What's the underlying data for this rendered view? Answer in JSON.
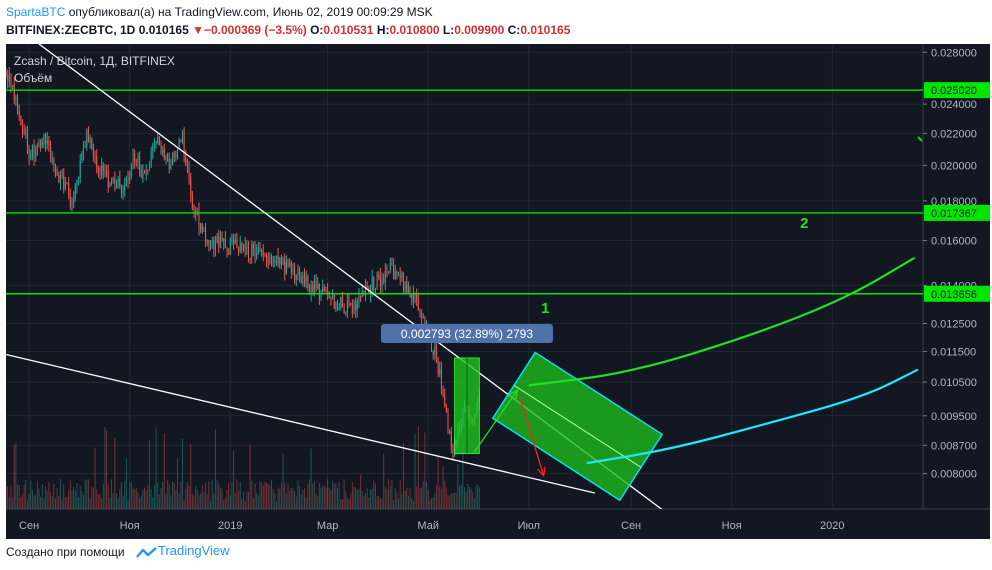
{
  "header": {
    "author": "SpartaBTC",
    "published_text": "опубликовал(а) на TradingView.com, Июнь 02, 2019 00:09:29 MSK",
    "symbol_interval": "BITFINEX:ZECBTC, 1D",
    "last_price": "0.010165",
    "change_arrow": "▼",
    "change": "−0.000369 (−3.5%)",
    "o_label": "O:",
    "o_value": "0.010531",
    "h_label": "H:",
    "h_value": "0.010800",
    "l_label": "L:",
    "l_value": "0.009900",
    "c_label": "C:",
    "c_value": "0.010165"
  },
  "footer": {
    "created_with": "Создано при помощи",
    "brand": "TradingView"
  },
  "colors": {
    "up": "#26a69a",
    "down": "#ef5350",
    "level": "#00e600",
    "trend": "#ffffff",
    "box_fill": "#1fc41f",
    "box_edge": "#00e5ff",
    "cyan_curve": "#1de9ff",
    "red_arrow": "#ff2020",
    "measure_bg": "#4f72a8",
    "price_label_bg": "#00e600"
  },
  "chart_data": {
    "type": "candlestick",
    "title": "Zcash / Bitcoin, 1Д, BITFINEX",
    "volume_label": "Объём",
    "y_scale": "log",
    "ylim": [
      0.0072,
      0.0287
    ],
    "xlim": [
      "2018-08-18",
      "2020-02-25"
    ],
    "y_ticks": [
      "0.028000",
      "0.024000",
      "0.022000",
      "0.020000",
      "0.018000",
      "0.016000",
      "0.014000",
      "0.012500",
      "0.011500",
      "0.010500",
      "0.009500",
      "0.008700",
      "0.008000"
    ],
    "x_ticks": [
      {
        "label": "Сен",
        "date": "2018-09-01"
      },
      {
        "label": "Ноя",
        "date": "2018-11-01"
      },
      {
        "label": "2019",
        "date": "2019-01-01"
      },
      {
        "label": "Мар",
        "date": "2019-03-01"
      },
      {
        "label": "Май",
        "date": "2019-05-01"
      },
      {
        "label": "Июл",
        "date": "2019-07-01"
      },
      {
        "label": "Сен",
        "date": "2019-09-01"
      },
      {
        "label": "Ноя",
        "date": "2019-11-01"
      },
      {
        "label": "2020",
        "date": "2020-01-01"
      }
    ],
    "price_path": [
      [
        "2018-08-18",
        0.0266
      ],
      [
        "2018-08-25",
        0.0238
      ],
      [
        "2018-09-02",
        0.0205
      ],
      [
        "2018-09-10",
        0.0218
      ],
      [
        "2018-09-20",
        0.0192
      ],
      [
        "2018-09-27",
        0.018
      ],
      [
        "2018-10-06",
        0.0218
      ],
      [
        "2018-10-14",
        0.0196
      ],
      [
        "2018-10-22",
        0.019
      ],
      [
        "2018-10-29",
        0.0188
      ],
      [
        "2018-11-04",
        0.0205
      ],
      [
        "2018-11-10",
        0.0194
      ],
      [
        "2018-11-17",
        0.0215
      ],
      [
        "2018-11-25",
        0.0202
      ],
      [
        "2018-12-03",
        0.0218
      ],
      [
        "2018-12-08",
        0.0182
      ],
      [
        "2018-12-15",
        0.0163
      ],
      [
        "2018-12-24",
        0.0158
      ],
      [
        "2019-01-06",
        0.0157
      ],
      [
        "2019-01-14",
        0.0155
      ],
      [
        "2019-01-22",
        0.0152
      ],
      [
        "2019-01-30",
        0.015
      ],
      [
        "2019-02-08",
        0.0146
      ],
      [
        "2019-02-18",
        0.014
      ],
      [
        "2019-02-27",
        0.0136
      ],
      [
        "2019-03-08",
        0.0132
      ],
      [
        "2019-03-18",
        0.013
      ],
      [
        "2019-03-24",
        0.0138
      ],
      [
        "2019-04-01",
        0.0143
      ],
      [
        "2019-04-08",
        0.0146
      ],
      [
        "2019-04-14",
        0.0143
      ],
      [
        "2019-04-22",
        0.0136
      ],
      [
        "2019-04-27",
        0.0128
      ],
      [
        "2019-05-03",
        0.0118
      ],
      [
        "2019-05-07",
        0.011
      ],
      [
        "2019-05-10",
        0.0101
      ],
      [
        "2019-05-13",
        0.0092
      ],
      [
        "2019-05-15",
        0.00855
      ],
      [
        "2019-05-18",
        0.0088
      ],
      [
        "2019-05-21",
        0.0094
      ],
      [
        "2019-05-24",
        0.0098
      ],
      [
        "2019-05-27",
        0.0093
      ],
      [
        "2019-05-29",
        0.0097
      ],
      [
        "2019-06-01",
        0.010165
      ]
    ],
    "levels": [
      {
        "label": "0.025020",
        "value": 0.02502
      },
      {
        "label": "0.017367",
        "value": 0.017367
      },
      {
        "label": "0.013656",
        "value": 0.013656
      }
    ],
    "trendlines": [
      {
        "from": [
          "2018-09-07",
          0.0287
        ],
        "to": [
          "2019-09-29",
          0.00695
        ]
      },
      {
        "from": [
          "2018-08-18",
          0.0114
        ],
        "to": [
          "2019-08-10",
          0.00755
        ]
      }
    ],
    "measure": {
      "label": "0.002793 (32.89%) 2793",
      "from_value": 0.00849,
      "to_value": 0.011283,
      "from_date": "2019-05-17",
      "to_date": "2019-06-01"
    },
    "projection_channel": {
      "from": [
        "2019-06-22",
        0.0104
      ],
      "to": [
        "2019-09-07",
        0.00815
      ],
      "width_value": 0.0012
    },
    "projection_arrows": [
      {
        "color": "green",
        "from": [
          "2019-05-29",
          0.00853
        ],
        "to": [
          "2019-06-24",
          0.01025
        ]
      },
      {
        "color": "red",
        "from": [
          "2019-06-25",
          0.0101
        ],
        "to": [
          "2019-07-10",
          0.00795
        ]
      }
    ],
    "projection_curves": [
      {
        "color": "green",
        "points": [
          [
            "2019-07-01",
            0.0104
          ],
          [
            "2019-09-01",
            0.0108
          ],
          [
            "2019-11-15",
            0.0121
          ],
          [
            "2020-01-10",
            0.0135
          ],
          [
            "2020-02-20",
            0.0152
          ]
        ]
      },
      {
        "color": "cyan",
        "points": [
          [
            "2019-08-05",
            0.00825
          ],
          [
            "2019-09-25",
            0.0086
          ],
          [
            "2019-11-20",
            0.00925
          ],
          [
            "2020-01-20",
            0.01005
          ],
          [
            "2020-02-22",
            0.0109
          ]
        ]
      }
    ],
    "annotations": [
      {
        "text": "1",
        "at": [
          "2019-07-11",
          0.0129
        ]
      },
      {
        "text": "2",
        "at": [
          "2019-12-15",
          0.0166
        ]
      }
    ]
  }
}
